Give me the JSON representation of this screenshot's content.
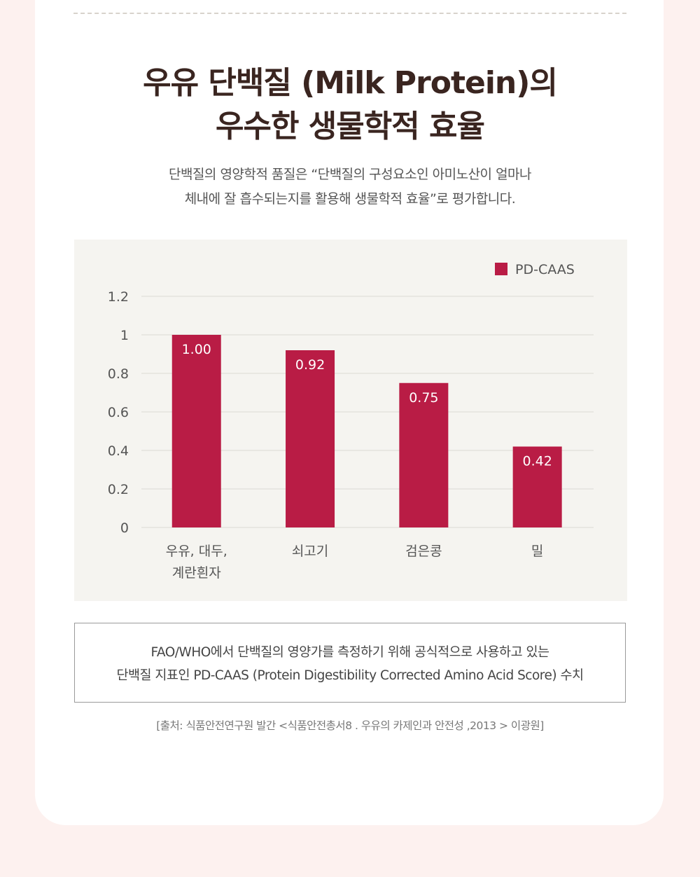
{
  "title": {
    "line1": "우유 단백질 (Milk Protein)의",
    "line2": "우수한 생물학적 효율"
  },
  "subtitle": {
    "line1": "단백질의 영양학적 품질은 “단백질의 구성요소인 아미노산이 얼마나",
    "line2": "체내에 잘 흡수되는지를 활용해 생물학적 효율”로 평가합니다."
  },
  "colors": {
    "bar": "#b91c45",
    "chart_background": "#f5f4f0",
    "title": "#3a2520"
  },
  "chart_data": {
    "type": "bar",
    "categories": [
      [
        "우유, 대두,",
        "계란흰자"
      ],
      [
        "쇠고기"
      ],
      [
        "검은콩"
      ],
      [
        "밀"
      ]
    ],
    "series": [
      {
        "name": "PD-CAAS",
        "values": [
          1.0,
          0.92,
          0.75,
          0.42
        ]
      }
    ],
    "data_labels": [
      "1.00",
      "0.92",
      "0.75",
      "0.42"
    ],
    "y_ticks": [
      "0",
      "0.2",
      "0.4",
      "0.6",
      "0.8",
      "1",
      "1.2"
    ],
    "ylim": [
      0,
      1.2
    ],
    "grid": true,
    "legend_position": "top-right"
  },
  "note": {
    "line1": "FAO/WHO에서 단백질의 영양가를 측정하기 위해 공식적으로 사용하고 있는",
    "line2": "단백질 지표인 PD-CAAS (Protein Digestibility Corrected Amino Acid Score) 수치"
  },
  "source": "[출처: 식품안전연구원 발간 <식품안전총서8 . 우유의 카제인과 안전성 ,2013 > 이광원]"
}
